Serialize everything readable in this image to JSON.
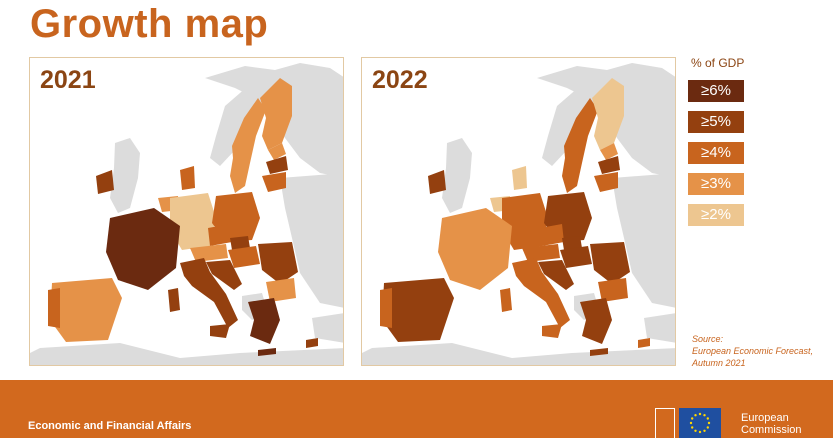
{
  "title": "Growth map",
  "maps": [
    {
      "year": "2021"
    },
    {
      "year": "2022"
    }
  ],
  "legend": {
    "title": "% of GDP",
    "items": [
      {
        "label": "≥6%",
        "color": "#6b2a10"
      },
      {
        "label": "≥5%",
        "color": "#94400f"
      },
      {
        "label": "≥4%",
        "color": "#c8641e"
      },
      {
        "label": "≥3%",
        "color": "#e59248"
      },
      {
        "label": "≥2%",
        "color": "#edc690"
      }
    ]
  },
  "source": {
    "line1": "Source:",
    "line2": "European Economic Forecast,",
    "line3": "Autumn 2021"
  },
  "footer": {
    "dg": "Economic and Financial Affairs",
    "ec_line1": "European",
    "ec_line2": "Commission"
  },
  "colors": {
    "non_eu": "#dcdcdc",
    "frame": "#e2c9a3",
    "accent": "#c8641e",
    "footer_bg": "#d2691e"
  },
  "icons": {
    "flag": "eu-flag-icon",
    "building": "berlaymont-icon"
  }
}
